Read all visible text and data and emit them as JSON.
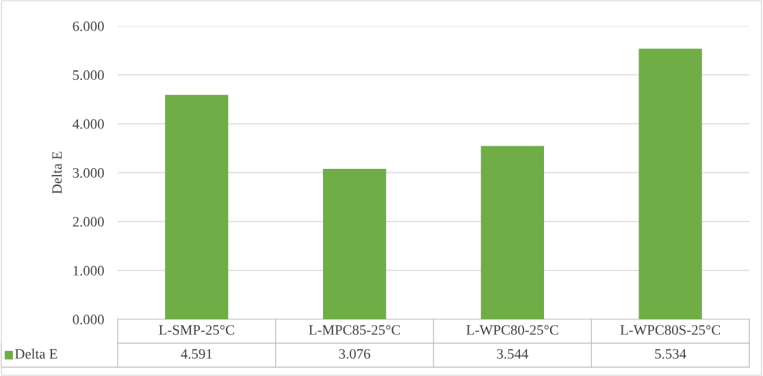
{
  "chart_data": {
    "type": "bar",
    "ylabel": "Delta E",
    "categories": [
      "L-SMP-25°C",
      "L-MPC85-25°C",
      "L-WPC80-25°C",
      "L-WPC80S-25°C"
    ],
    "series": [
      {
        "name": "Delta E",
        "color": "#70ad47",
        "values": [
          4.591,
          3.076,
          3.544,
          5.534
        ]
      }
    ],
    "ylim": [
      0,
      6
    ],
    "yticks": [
      {
        "value": 0,
        "label": "0.000"
      },
      {
        "value": 1,
        "label": "1.000"
      },
      {
        "value": 2,
        "label": "2.000"
      },
      {
        "value": 3,
        "label": "3.000"
      },
      {
        "value": 4,
        "label": "4.000"
      },
      {
        "value": 5,
        "label": "5.000"
      },
      {
        "value": 6,
        "label": "6.000"
      }
    ],
    "grid": "y",
    "data_labels": true,
    "legend": "bottom"
  }
}
